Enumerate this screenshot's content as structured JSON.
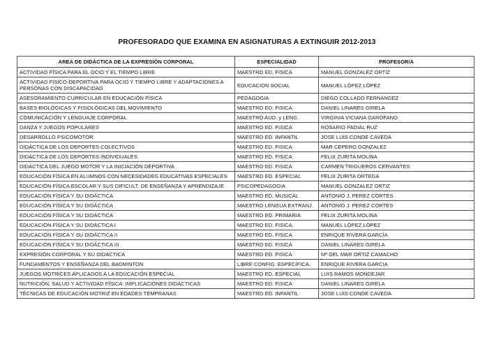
{
  "page": {
    "title": "PROFESORADO QUE EXAMINA EN ASIGNATURAS A EXTINGUIR 2012-2013"
  },
  "table": {
    "headers": [
      "AREA DE DIDÁCTICA DE LA EXPRESIÓN CORPORAL",
      "ESPECIALIDAD",
      "PROFESOR/A"
    ],
    "rows": [
      {
        "area": "ACTIVIDAD FÍSICA PARA EL OCIO Y EL TIEMPO LIBRE",
        "especialidad": "MAESTRO ED. FISICA",
        "profesor": "MANUEL GONZALEZ ORTIZ"
      },
      {
        "area": "ACTIVIDAD FISICO-DEPORTIVA PARA OCIO Y TIEMPO LIBRE Y ADAPTACIONES A PERSONAS CON DISCAPACIDAD",
        "especialidad": "EDUCACION SOCIAL",
        "profesor": "MANUEL LÓPEZ LÓPEZ"
      },
      {
        "area": "ASESORAMIENTO CURRICULAR EN EDUCACIÓN FÍSICA",
        "especialidad": "PEDAGOGIA",
        "profesor": "DIEGO COLLADO FERNANDEZ"
      },
      {
        "area": "BASES BIOLÓGICAS Y FISIOLÓGICAS DEL MOVIMIENTO",
        "especialidad": "MAESTRO ED. FISICA",
        "profesor": "DANIEL LINARES GIRELA"
      },
      {
        "area": "COMUNICACIÓN Y LENGUAJE CORPORAL",
        "especialidad": "MAESTRO AUD. y LENG.",
        "profesor": "VIRGINIA VICIANA GAROFANO"
      },
      {
        "area": "DANZA Y JUEGOS POPULARES",
        "especialidad": "MAESTRO ED. FISICA",
        "profesor": "ROSARIO PADIAL RUZ"
      },
      {
        "area": "DESARROLLO PSICOMOTOR",
        "especialidad": "MAESTRO ED. INFANTIL",
        "profesor": "JOSE LUIS CONDE CAVEDA"
      },
      {
        "area": "DIDÁCTICA DE LOS DEPORTES COLECTIVOS",
        "especialidad": "MAESTRO ED. FISICA",
        "profesor": "MAR CEPERO GONZALEZ"
      },
      {
        "area": "DIDÁCTICA DE LOS DEPORTES INDIVIDUALES",
        "especialidad": "MAESTRO ED. FISICA",
        "profesor": "FELIX ZURITA MOLINA"
      },
      {
        "area": "DIDÁCTICA DEL JUEGO MOTOR Y LA INICIACIÓN DEPORTIVA",
        "especialidad": "MAESTRO ED. FISICA",
        "profesor": "CARMEN TRIGUEROS CERVANTES"
      },
      {
        "area": "EDUCACIÓN FÍSICA EN ALUMNOS CON NECESIDADES EDUCATIVAS ESPECIALES",
        "especialidad": "MAESTRO ED. ESPECIAL",
        "profesor": "FELIX ZURITA ORTEGA"
      },
      {
        "area": "EDUCACIÓN FÍSICA ESCOLAR Y SUS DIFICULT. DE ENSEÑANZA Y APRENDIZAJE",
        "especialidad": "PSICOPEDAGOGIA",
        "profesor": "MANUEL GONZALEZ ORTIZ"
      },
      {
        "area": "EDUCACIÓN FÍSICA Y SU DIDÁCTICA",
        "especialidad": "MAESTRO ED. MUSICAL",
        "profesor": "ANTONIO J. PEREZ CORTES"
      },
      {
        "area": "EDUCACIÓN FÍSICA Y SU DIDÁCTICA",
        "especialidad": "MAESTRO LENGUA EXTRANJ.",
        "profesor": "ANTONIO J. PEREZ CORTES"
      },
      {
        "area": "EDUCACIÓN FÍSICA Y SU DIDÁCTICA",
        "especialidad": "MAESTRO ED. PRIMARIA",
        "profesor": "FELIX ZURITA MOLINA"
      },
      {
        "area": "EDUCACIÓN FÍSICA Y SU DIDÁCTICA I",
        "especialidad": "MAESTRO ED. FISICA",
        "profesor": "MANUEL LÓPEZ LÓPEZ"
      },
      {
        "area": "EDUCACIÓN FÍSICA Y SU DIDÁCTICA II",
        "especialidad": "MAESTRO ED. FISICA",
        "profesor": "ENRIQUE RIVERA GARCÍA"
      },
      {
        "area": "EDUCACIÓN FÍSICA Y SU DIDÁCTICA III",
        "especialidad": "MAESTRO ED. FISICA",
        "profesor": "DANIEL LINARES GIRELA"
      },
      {
        "area": "EXPRESIÓN CORPORAL Y SU DIDÁCTICA",
        "especialidad": "MAESTRO ED. FISICA",
        "profesor": "Mª DEL MAR ORTIZ CAMACHO"
      },
      {
        "area": "FUNDAMENTOS Y ENSEÑANZA DEL BADMINTON",
        "especialidad": "LIBRE CONFIG. ESPECÍFICA",
        "profesor": "ENRIQUE RIVERA GARCIA"
      },
      {
        "area": "JUEGOS MOTRICES APLICADOS A LA EDUCACIÓN ESPECIAL",
        "especialidad": "MAESTRO ED. ESPECIAL",
        "profesor": "LUIS RAMOS MONDEJAR"
      },
      {
        "area": "NUTRICIÓN, SALUD Y ACTIVIDAD FÍSICA: IMPLICACIONES DIDÁCTICAS",
        "especialidad": "MAESTRO ED. FISICA",
        "profesor": "DANIEL LINARES GIRELA"
      },
      {
        "area": "TÉCNICAS DE EDUCACIÓN MOTRIZ EN EDADES TEMPRANAS",
        "especialidad": "MAESTRO ED. INFANTIL",
        "profesor": "JOSE LUIS CONDE CAVEDA"
      }
    ]
  },
  "colors": {
    "border": "#4e4e4e",
    "text": "#1c1c1c",
    "background": "#ffffff"
  }
}
